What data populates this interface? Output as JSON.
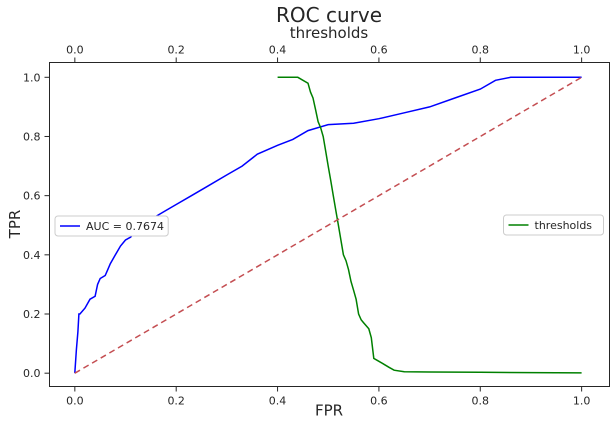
{
  "chart_data": {
    "type": "line",
    "title": "ROC curve",
    "xlabel": "FPR",
    "ylabel": "TPR",
    "x2label": "thresholds",
    "xlim": [
      -0.05,
      1.055
    ],
    "ylim": [
      -0.045,
      1.05
    ],
    "x2lim": [
      -0.05,
      1.055
    ],
    "xticks": [
      0.0,
      0.2,
      0.4,
      0.6,
      0.8,
      1.0
    ],
    "yticks": [
      0.0,
      0.2,
      0.4,
      0.6,
      0.8,
      1.0
    ],
    "x2ticks": [
      0.0,
      0.2,
      0.4,
      0.6,
      0.8,
      1.0
    ],
    "tick_labels": {
      "x": [
        "0.0",
        "0.2",
        "0.4",
        "0.6",
        "0.8",
        "1.0"
      ],
      "y": [
        "0.0",
        "0.2",
        "0.4",
        "0.6",
        "0.8",
        "1.0"
      ],
      "x2": [
        "0.0",
        "0.2",
        "0.4",
        "0.6",
        "0.8",
        "1.0"
      ]
    },
    "grid": false,
    "series": [
      {
        "name": "AUC = 0.7674",
        "axis": "bottom",
        "color": "#0000ff",
        "style": "solid",
        "x": [
          0.0,
          0.003,
          0.006,
          0.008,
          0.01,
          0.02,
          0.03,
          0.04,
          0.045,
          0.05,
          0.06,
          0.065,
          0.07,
          0.08,
          0.09,
          0.1,
          0.11,
          0.12,
          0.14,
          0.16,
          0.18,
          0.2,
          0.23,
          0.26,
          0.3,
          0.33,
          0.36,
          0.4,
          0.43,
          0.46,
          0.5,
          0.55,
          0.6,
          0.65,
          0.7,
          0.75,
          0.8,
          0.83,
          0.86,
          0.9,
          1.0
        ],
        "y": [
          0.0,
          0.08,
          0.14,
          0.2,
          0.2,
          0.22,
          0.25,
          0.26,
          0.3,
          0.32,
          0.33,
          0.35,
          0.37,
          0.4,
          0.43,
          0.45,
          0.46,
          0.48,
          0.51,
          0.53,
          0.55,
          0.57,
          0.6,
          0.63,
          0.67,
          0.7,
          0.74,
          0.77,
          0.79,
          0.82,
          0.84,
          0.845,
          0.86,
          0.88,
          0.9,
          0.93,
          0.96,
          0.99,
          1.0,
          1.0,
          1.0
        ]
      },
      {
        "name": "thresholds",
        "axis": "top",
        "color": "#008000",
        "style": "solid",
        "x": [
          0.4,
          0.44,
          0.46,
          0.465,
          0.47,
          0.475,
          0.48,
          0.485,
          0.49,
          0.495,
          0.5,
          0.505,
          0.51,
          0.515,
          0.52,
          0.525,
          0.53,
          0.535,
          0.54,
          0.545,
          0.55,
          0.555,
          0.56,
          0.565,
          0.57,
          0.575,
          0.58,
          0.585,
          0.59,
          0.6,
          0.61,
          0.62,
          0.63,
          0.65,
          0.7,
          0.8,
          0.9,
          1.0
        ],
        "y": [
          1.0,
          1.0,
          0.98,
          0.95,
          0.93,
          0.89,
          0.85,
          0.83,
          0.8,
          0.75,
          0.7,
          0.65,
          0.6,
          0.55,
          0.5,
          0.45,
          0.4,
          0.38,
          0.35,
          0.31,
          0.28,
          0.25,
          0.2,
          0.18,
          0.17,
          0.16,
          0.15,
          0.12,
          0.05,
          0.04,
          0.03,
          0.02,
          0.01,
          0.005,
          0.004,
          0.003,
          0.002,
          0.001
        ]
      },
      {
        "name": "",
        "axis": "bottom",
        "color": "#c44e52",
        "style": "dashed",
        "x": [
          0.0,
          1.0
        ],
        "y": [
          0.0,
          1.0
        ]
      }
    ],
    "legends": [
      {
        "placement": "center-left",
        "entries": [
          "AUC = 0.7674"
        ],
        "color": "#0000ff"
      },
      {
        "placement": "center-right",
        "entries": [
          "thresholds"
        ],
        "color": "#008000"
      }
    ]
  }
}
